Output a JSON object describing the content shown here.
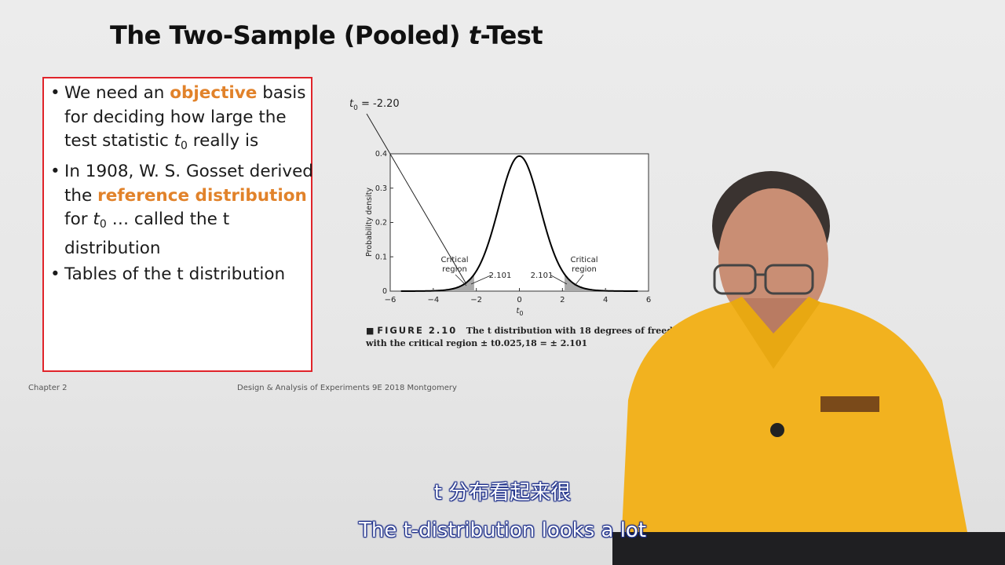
{
  "slide": {
    "title_prefix": "The Two-Sample (Pooled) ",
    "title_italic": "t",
    "title_suffix": "-Test",
    "bullets": [
      {
        "before": "We need an ",
        "highlight": "objective",
        "after": " basis for deciding how large the test statistic ",
        "var": "t",
        "sub": "0",
        "tail": " really is"
      },
      {
        "before": "In 1908, W. S. Gosset derived the ",
        "highlight": "reference distribution",
        "after": " for ",
        "var": "t",
        "sub": "0",
        "tail": " … called the t distribution"
      },
      {
        "before": "Tables of the t distribution",
        "highlight": "",
        "after": "",
        "var": "",
        "sub": "",
        "tail": ""
      }
    ],
    "footer_left": "Chapter 2",
    "footer_center": "Design & Analysis of Experiments 9E 2018 Montgomery"
  },
  "chart_data": {
    "type": "line",
    "title": "",
    "xlabel": "t0",
    "ylabel": "Probability density",
    "xlim": [
      -6,
      6
    ],
    "ylim": [
      0,
      0.4
    ],
    "x_ticks": [
      "-6",
      "-4",
      "-2",
      "0",
      "2",
      "4",
      "6"
    ],
    "y_ticks": [
      "0",
      "0.1",
      "0.2",
      "0.3",
      "0.4"
    ],
    "degrees_of_freedom": 18,
    "critical_value": 2.101,
    "annotations": {
      "t0_label": "t0 = -2.20",
      "left_region": "Critical region",
      "right_region": "Critical region",
      "left_value": "2.101",
      "right_value": "2.101"
    },
    "caption_fig": "FIGURE 2.10",
    "caption_line1": "The t distribution with 18 degrees of freedom",
    "caption_line2": "with the critical region ± t0.025,18 = ± 2.101"
  },
  "subtitles": {
    "chinese": "t 分布看起来很",
    "english": "The t-distribution looks a lot"
  },
  "colors": {
    "box_border": "#e0242a",
    "highlight": "#e1822a",
    "shirt": "#f2b21f"
  }
}
